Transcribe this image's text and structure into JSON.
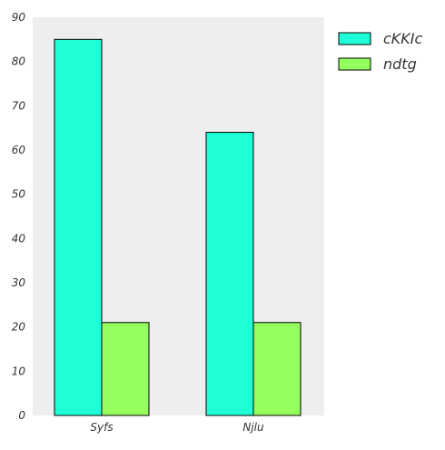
{
  "chart_data": {
    "type": "bar",
    "categories": [
      "Syfs",
      "Njlu"
    ],
    "series": [
      {
        "name": "cKKIc",
        "values": [
          85,
          64
        ],
        "color": "#1effd8"
      },
      {
        "name": "ndtg",
        "values": [
          21,
          21
        ],
        "color": "#94ff5f"
      }
    ],
    "ylim": [
      0,
      90
    ],
    "yticks": [
      0,
      10,
      20,
      30,
      40,
      50,
      60,
      70,
      80,
      90
    ],
    "grid": false,
    "legend_position": "outside-top-right",
    "plot_background": "#eeeeee"
  }
}
